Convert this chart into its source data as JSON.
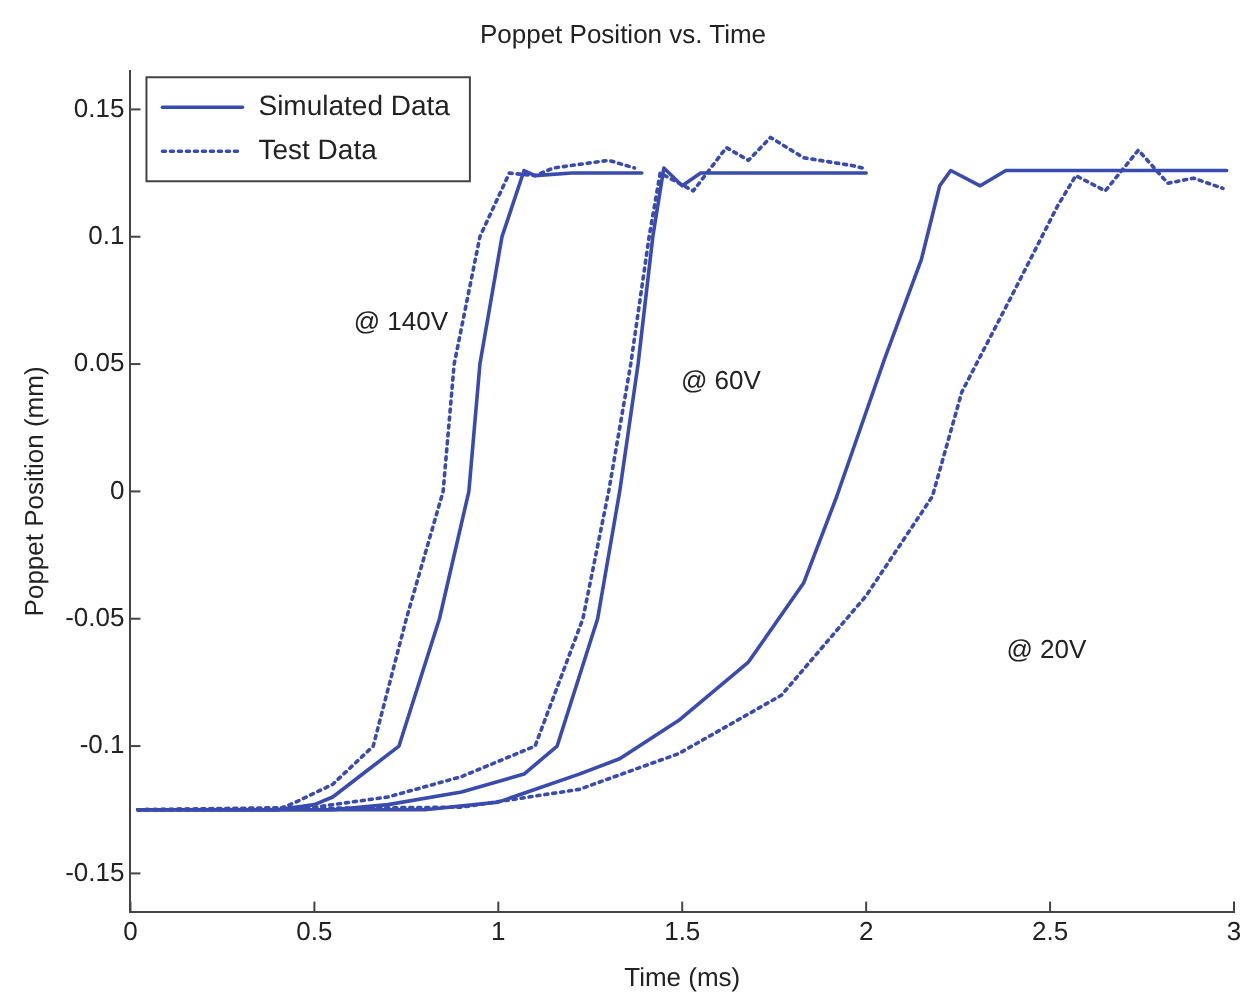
{
  "chart_data": {
    "type": "line",
    "title": "Poppet Position vs. Time",
    "xlabel": "Time (ms)",
    "ylabel": "Poppet Position (mm)",
    "xlim": [
      0,
      3
    ],
    "xticks": [
      0,
      0.5,
      1,
      1.5,
      2,
      2.5,
      3
    ],
    "ylim": [
      -0.165,
      0.165
    ],
    "yticks": [
      -0.15,
      -0.1,
      -0.05,
      0,
      0.05,
      0.1,
      0.15
    ],
    "grid": false,
    "legend": "top left",
    "marker": "none",
    "annotations": [
      "@ 140V",
      "@ 60V",
      "@ 20V"
    ],
    "series": [
      {
        "name": "Simulated Data",
        "color": "#3a4bb0",
        "line_style": "solid",
        "x": [
          0.02,
          0.4,
          0.5,
          0.55,
          0.64,
          0.73,
          0.84,
          0.92,
          0.95,
          1.01,
          1.07,
          1.1,
          1.2,
          1.3,
          1.39
        ],
        "values": [
          -0.125,
          -0.125,
          -0.123,
          -0.12,
          -0.11,
          -0.1,
          -0.05,
          0,
          0.05,
          0.1,
          0.126,
          0.124,
          0.125,
          0.125,
          0.125
        ]
      },
      {
        "name": "Test Data",
        "color": "#3a4bb0",
        "line_style": "dotted",
        "x": [
          0.02,
          0.4,
          0.45,
          0.55,
          0.66,
          0.75,
          0.85,
          0.88,
          0.95,
          1.03,
          1.1,
          1.15,
          1.25,
          1.3,
          1.37
        ],
        "values": [
          -0.125,
          -0.125,
          -0.122,
          -0.115,
          -0.1,
          -0.05,
          0,
          0.05,
          0.1,
          0.125,
          0.124,
          0.127,
          0.129,
          0.13,
          0.127
        ]
      },
      {
        "color": "#3a4bb0",
        "line_style": "solid",
        "x": [
          0.02,
          0.55,
          0.7,
          0.9,
          1.07,
          1.16,
          1.27,
          1.33,
          1.38,
          1.42,
          1.45,
          1.5,
          1.55,
          1.7,
          2.0
        ],
        "values": [
          -0.125,
          -0.125,
          -0.123,
          -0.118,
          -0.111,
          -0.1,
          -0.05,
          0,
          0.05,
          0.1,
          0.127,
          0.12,
          0.125,
          0.125,
          0.125
        ]
      },
      {
        "color": "#3a4bb0",
        "line_style": "dotted",
        "x": [
          0.02,
          0.5,
          0.7,
          0.9,
          1.1,
          1.23,
          1.3,
          1.36,
          1.41,
          1.44,
          1.53,
          1.62,
          1.68,
          1.74,
          1.83,
          1.96,
          1.99
        ],
        "values": [
          -0.125,
          -0.124,
          -0.12,
          -0.112,
          -0.1,
          -0.05,
          0,
          0.05,
          0.1,
          0.125,
          0.118,
          0.135,
          0.13,
          0.139,
          0.131,
          0.128,
          0.127
        ]
      },
      {
        "color": "#3a4bb0",
        "line_style": "solid",
        "x": [
          0.02,
          0.8,
          1.0,
          1.22,
          1.33,
          1.49,
          1.68,
          1.83,
          1.92,
          2.05,
          2.15,
          2.2,
          2.23,
          2.31,
          2.38,
          2.7,
          2.98
        ],
        "values": [
          -0.125,
          -0.125,
          -0.122,
          -0.111,
          -0.105,
          -0.09,
          -0.067,
          -0.036,
          -0.002,
          0.052,
          0.091,
          0.12,
          0.126,
          0.12,
          0.126,
          0.126,
          0.126
        ]
      },
      {
        "color": "#3a4bb0",
        "line_style": "dotted",
        "x": [
          0.02,
          0.9,
          1.22,
          1.49,
          1.77,
          2.0,
          2.18,
          2.26,
          2.4,
          2.52,
          2.57,
          2.65,
          2.74,
          2.82,
          2.89,
          2.97
        ],
        "values": [
          -0.125,
          -0.124,
          -0.117,
          -0.103,
          -0.08,
          -0.041,
          -0.002,
          0.039,
          0.078,
          0.112,
          0.124,
          0.118,
          0.134,
          0.121,
          0.123,
          0.119
        ]
      }
    ]
  }
}
